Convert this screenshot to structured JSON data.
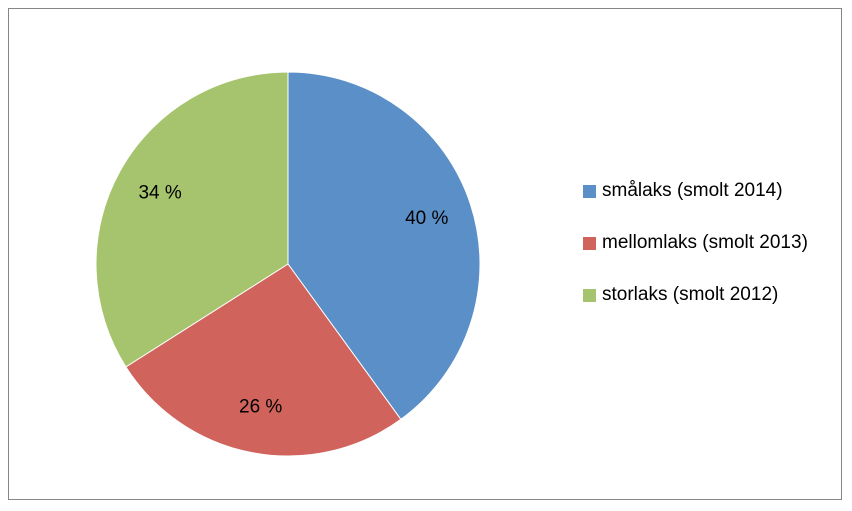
{
  "chart_data": {
    "type": "pie",
    "categories": [
      "smålaks (smolt 2014)",
      "mellomlaks (smolt 2013)",
      "storlaks (smolt 2012)"
    ],
    "values": [
      40,
      26,
      34
    ],
    "value_labels": [
      "40 %",
      "26 %",
      "34 %"
    ],
    "colors": [
      "#5b8fc8",
      "#d0635c",
      "#a6c46e"
    ],
    "legend": "right"
  }
}
